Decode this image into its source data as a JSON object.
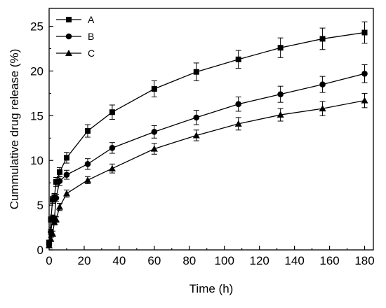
{
  "chart_data": {
    "type": "line",
    "xlabel": "Time (h)",
    "ylabel": "Cummulative drug release (%)",
    "xlim": [
      0,
      185
    ],
    "ylim": [
      0,
      27
    ],
    "xticks": [
      0,
      20,
      40,
      60,
      80,
      100,
      120,
      140,
      160,
      180
    ],
    "yticks": [
      0,
      5,
      10,
      15,
      20,
      25
    ],
    "grid": false,
    "legend_position": "top-left",
    "x": [
      0,
      1,
      2,
      3,
      4,
      6,
      10,
      22,
      36,
      60,
      84,
      108,
      132,
      156,
      180
    ],
    "series": [
      {
        "name": "A",
        "marker": "square",
        "values": [
          0.8,
          3.4,
          5.6,
          5.9,
          7.6,
          8.7,
          10.3,
          13.3,
          15.4,
          18.0,
          19.9,
          21.3,
          22.6,
          23.6,
          24.3
        ],
        "errors": [
          0.3,
          0.3,
          0.4,
          0.4,
          0.5,
          0.5,
          0.6,
          0.7,
          0.8,
          0.9,
          1.0,
          1.0,
          1.1,
          1.2,
          1.2
        ]
      },
      {
        "name": "B",
        "marker": "circle",
        "values": [
          0.7,
          2.0,
          3.6,
          3.5,
          5.8,
          7.7,
          8.4,
          9.6,
          11.4,
          13.2,
          14.8,
          16.3,
          17.4,
          18.5,
          19.7
        ],
        "errors": [
          0.3,
          0.3,
          0.3,
          0.3,
          0.4,
          0.5,
          0.5,
          0.6,
          0.6,
          0.7,
          0.8,
          0.8,
          0.9,
          0.9,
          1.0
        ]
      },
      {
        "name": "C",
        "marker": "triangle",
        "values": [
          0.5,
          1.2,
          1.8,
          3.1,
          3.4,
          4.8,
          6.3,
          7.8,
          9.1,
          11.3,
          12.8,
          14.1,
          15.1,
          15.8,
          16.7
        ],
        "errors": [
          0.2,
          0.2,
          0.3,
          0.3,
          0.3,
          0.4,
          0.4,
          0.4,
          0.5,
          0.6,
          0.6,
          0.7,
          0.7,
          0.8,
          0.8
        ]
      }
    ]
  }
}
